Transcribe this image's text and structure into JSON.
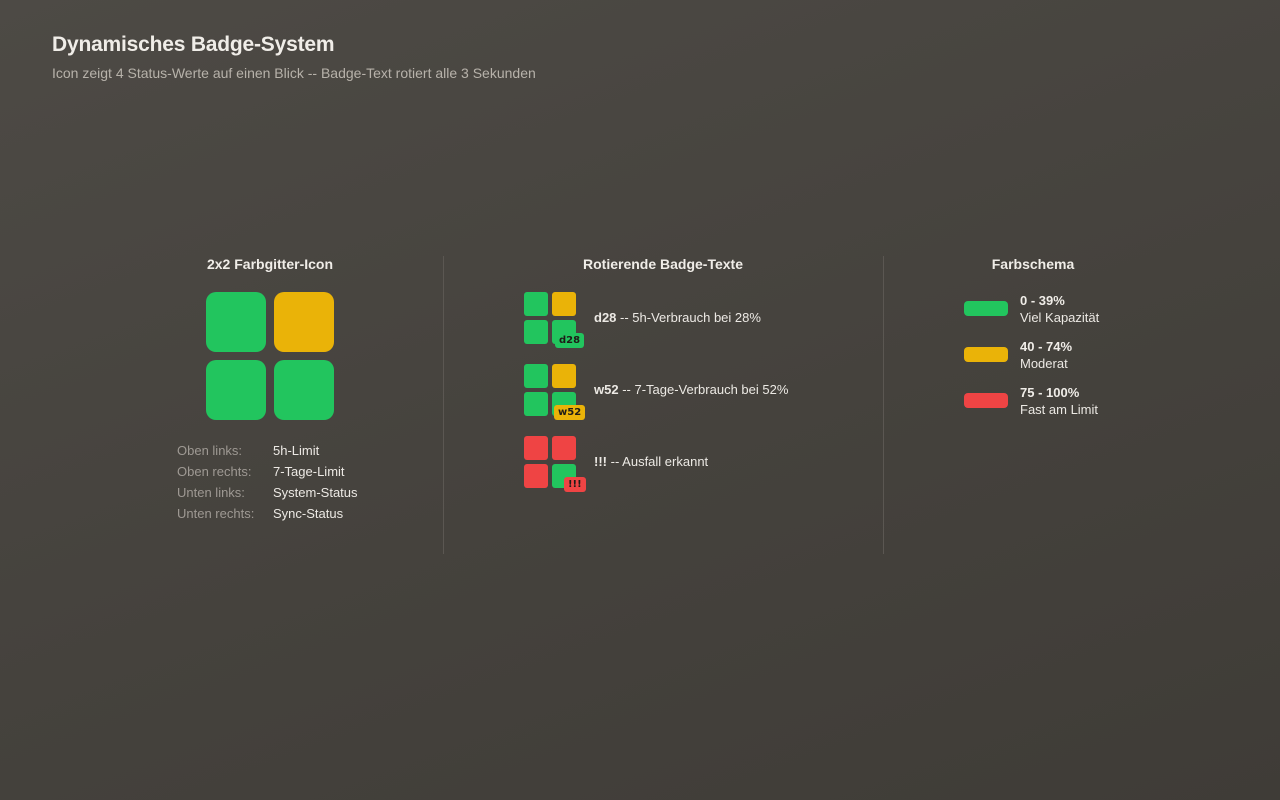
{
  "header": {
    "title": "Dynamisches Badge-System",
    "subtitle": "Icon zeigt 4 Status-Werte auf einen Blick -- Badge-Text rotiert alle 3 Sekunden"
  },
  "colors": {
    "green": "#22c55e",
    "yellow": "#eab308",
    "red": "#ef4444"
  },
  "grid_icon": {
    "title": "2x2 Farbgitter-Icon",
    "cells": [
      "green",
      "yellow",
      "green",
      "green"
    ],
    "legend": [
      {
        "key": "Oben links:",
        "value": "5h-Limit"
      },
      {
        "key": "Oben rechts:",
        "value": "7-Tage-Limit"
      },
      {
        "key": "Unten links:",
        "value": "System-Status"
      },
      {
        "key": "Unten rechts:",
        "value": "Sync-Status"
      }
    ]
  },
  "badges": {
    "title": "Rotierende Badge-Texte",
    "items": [
      {
        "badge": "d28",
        "badge_color": "green",
        "cells": [
          "green",
          "yellow",
          "green",
          "green"
        ],
        "code": "d28",
        "text": " -- 5h-Verbrauch bei 28%"
      },
      {
        "badge": "w52",
        "badge_color": "yellow",
        "cells": [
          "green",
          "yellow",
          "green",
          "green"
        ],
        "code": "w52",
        "text": " -- 7-Tage-Verbrauch bei 52%"
      },
      {
        "badge": "!!!",
        "badge_color": "red",
        "cells": [
          "red",
          "red",
          "red",
          "green"
        ],
        "code": "!!!",
        "text": " -- Ausfall erkannt"
      }
    ]
  },
  "scheme": {
    "title": "Farbschema",
    "items": [
      {
        "color": "green",
        "range": "0 - 39%",
        "label": "Viel Kapazität"
      },
      {
        "color": "yellow",
        "range": "40 - 74%",
        "label": "Moderat"
      },
      {
        "color": "red",
        "range": "75 - 100%",
        "label": "Fast am Limit"
      }
    ]
  }
}
